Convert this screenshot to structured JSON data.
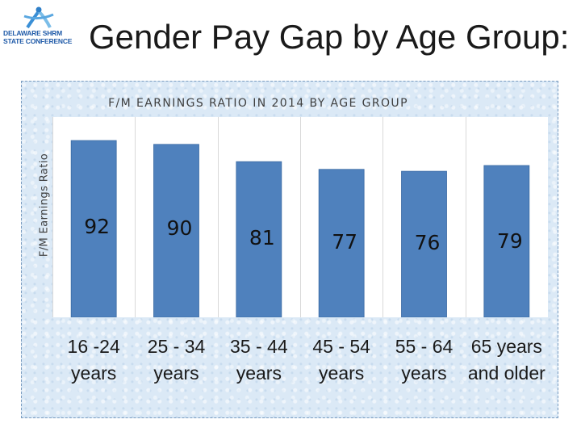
{
  "slide": {
    "title": "Gender Pay Gap by Age Group:"
  },
  "logo": {
    "line1": "DELAWARE SHRM",
    "line2": "STATE CONFERENCE"
  },
  "colors": {
    "bar": "#4f81bd",
    "bar_edge": "#3a6aa3",
    "grid": "#d9d9d9"
  },
  "chart_data": {
    "type": "bar",
    "title": "F/M EARNINGS RATIO IN 2014 BY AGE GROUP",
    "xlabel": "",
    "ylabel": "F/M Earnings Ratio",
    "categories": [
      "16 -24 years",
      "25 - 34 years",
      "35 - 44 years",
      "45 - 54 years",
      "55 - 64 years",
      "65 years and older"
    ],
    "values": [
      92,
      90,
      81,
      77,
      76,
      79
    ],
    "value_labels": [
      "92",
      "90",
      "81",
      "77",
      "76",
      "79"
    ],
    "ylim": [
      0,
      100
    ],
    "grid": true,
    "legend": "none"
  }
}
